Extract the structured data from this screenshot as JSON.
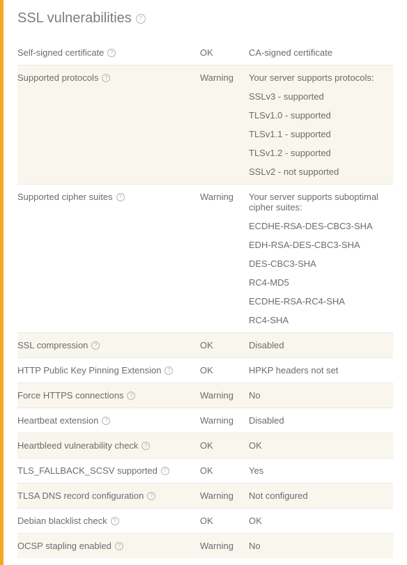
{
  "accent_color": "#f2a91f",
  "background_alt": "#f9f6ee",
  "border_color": "#eceae3",
  "text_color": "#6c6c6c",
  "heading_color": "#7d7d7d",
  "heading": "SSL vulnerabilities",
  "rows": [
    {
      "name": "Self-signed certificate",
      "status": "OK",
      "details": [
        "CA-signed certificate"
      ],
      "alt": false
    },
    {
      "name": "Supported protocols",
      "status": "Warning",
      "details": [
        "Your server supports protocols:",
        "SSLv3 - supported",
        "TLSv1.0 - supported",
        "TLSv1.1 - supported",
        "TLSv1.2 - supported",
        "SSLv2 - not supported"
      ],
      "alt": true
    },
    {
      "name": "Supported cipher suites",
      "status": "Warning",
      "details": [
        "Your server supports suboptimal cipher suites:",
        "ECDHE-RSA-DES-CBC3-SHA",
        "EDH-RSA-DES-CBC3-SHA",
        "DES-CBC3-SHA",
        "RC4-MD5",
        "ECDHE-RSA-RC4-SHA",
        "RC4-SHA"
      ],
      "alt": false
    },
    {
      "name": "SSL compression",
      "status": "OK",
      "details": [
        "Disabled"
      ],
      "alt": true
    },
    {
      "name": "HTTP Public Key Pinning Extension",
      "status": "OK",
      "details": [
        "HPKP headers not set"
      ],
      "alt": false
    },
    {
      "name": "Force HTTPS connections",
      "status": "Warning",
      "details": [
        "No"
      ],
      "alt": true
    },
    {
      "name": "Heartbeat extension",
      "status": "Warning",
      "details": [
        "Disabled"
      ],
      "alt": false
    },
    {
      "name": "Heartbleed vulnerability check",
      "status": "OK",
      "details": [
        "OK"
      ],
      "alt": true
    },
    {
      "name": "TLS_FALLBACK_SCSV supported",
      "status": "OK",
      "details": [
        "Yes"
      ],
      "alt": false
    },
    {
      "name": "TLSA DNS record configuration",
      "status": "Warning",
      "details": [
        "Not configured"
      ],
      "alt": true
    },
    {
      "name": "Debian blacklist check",
      "status": "OK",
      "details": [
        "OK"
      ],
      "alt": false
    },
    {
      "name": "OCSP stapling enabled",
      "status": "Warning",
      "details": [
        "No"
      ],
      "alt": true
    }
  ]
}
